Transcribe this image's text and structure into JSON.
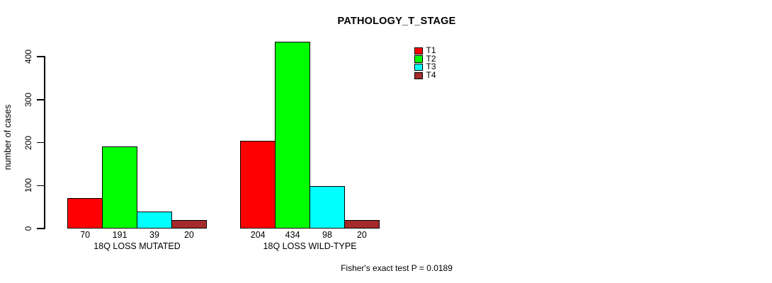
{
  "chart_data": {
    "type": "bar",
    "title": "PATHOLOGY_T_STAGE",
    "ylabel": "number of cases",
    "xlabel": "",
    "ylim": [
      0,
      400
    ],
    "yticks": [
      0,
      100,
      200,
      300,
      400
    ],
    "grid": false,
    "legend_position": "top-right",
    "categories": [
      "18Q LOSS MUTATED",
      "18Q LOSS WILD-TYPE"
    ],
    "series": [
      {
        "name": "T1",
        "color": "#ff0000",
        "values": [
          70,
          204
        ]
      },
      {
        "name": "T2",
        "color": "#00ff00",
        "values": [
          191,
          434
        ]
      },
      {
        "name": "T3",
        "color": "#00ffff",
        "values": [
          39,
          98
        ]
      },
      {
        "name": "T4",
        "color": "#a52a2a",
        "values": [
          20,
          20
        ]
      }
    ],
    "bar_value_labels": {
      "18Q LOSS MUTATED": [
        "70",
        "191",
        "39",
        "20"
      ],
      "18Q LOSS WILD-TYPE": [
        "204",
        "434",
        "98",
        "20"
      ]
    }
  },
  "annotation": "Fisher's exact test P = 0.0189",
  "colors": {
    "background": "#ffffff",
    "axis": "#000000",
    "text": "#000000"
  }
}
